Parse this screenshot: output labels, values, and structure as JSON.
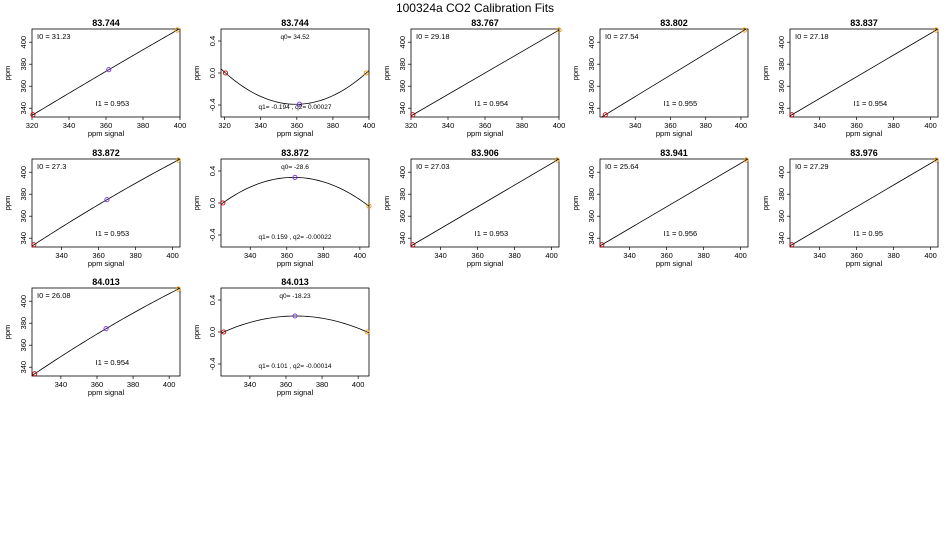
{
  "page_title": "100324a   CO2 Calibration Fits",
  "axis_labels": {
    "x": "ppm signal",
    "y": "ppm"
  },
  "colors": {
    "low_point": "#cc0000",
    "mid_point": "#7a2be2",
    "high_point": "#e69500",
    "fit_line": "#000000"
  },
  "chart_data": [
    {
      "type": "line",
      "title": "83.744",
      "xlim": [
        320,
        400
      ],
      "ylim": [
        332,
        412
      ],
      "xticks": [
        320,
        340,
        360,
        380,
        400
      ],
      "yticks": [
        340,
        360,
        380,
        400
      ],
      "x": [
        320.5,
        361.5,
        398.5
      ],
      "y": [
        334,
        375,
        411
      ],
      "annotations": [
        {
          "text": "I0 =  31.23",
          "pos": "top-left"
        },
        {
          "text": "I1 =  0.953",
          "pos": "bottom-right"
        }
      ]
    },
    {
      "type": "line",
      "title": "83.744",
      "xlim": [
        318,
        400
      ],
      "ylim": [
        -0.55,
        0.55
      ],
      "xticks": [
        320,
        340,
        360,
        380,
        400
      ],
      "yticks": [
        -0.4,
        0.0,
        0.4
      ],
      "x": [
        320.5,
        361.5,
        398.5
      ],
      "y": [
        0.0,
        -0.39,
        0.0
      ],
      "annotations": [
        {
          "text": "q0= 34.52",
          "pos": "top"
        },
        {
          "text": "q1= -0.194  ,  q2= 0.00027",
          "pos": "bottom"
        }
      ]
    },
    {
      "type": "line",
      "title": "83.767",
      "xlim": [
        320,
        400
      ],
      "ylim": [
        332,
        412
      ],
      "xticks": [
        320,
        340,
        360,
        380,
        400
      ],
      "yticks": [
        340,
        360,
        380,
        400
      ],
      "x": [
        321,
        400
      ],
      "y": [
        334,
        411
      ],
      "annotations": [
        {
          "text": "I0 =  29.18",
          "pos": "top-left"
        },
        {
          "text": "I1 =  0.954",
          "pos": "bottom-right"
        }
      ]
    },
    {
      "type": "line",
      "title": "83.802",
      "xlim": [
        320,
        404
      ],
      "ylim": [
        332,
        412
      ],
      "xticks": [
        340,
        360,
        380,
        400
      ],
      "yticks": [
        340,
        360,
        380,
        400
      ],
      "x": [
        323,
        402
      ],
      "y": [
        334,
        411
      ],
      "annotations": [
        {
          "text": "I0 =  27.54",
          "pos": "top-left"
        },
        {
          "text": "I1 =  0.955",
          "pos": "bottom-right"
        }
      ]
    },
    {
      "type": "line",
      "title": "83.837",
      "xlim": [
        324,
        404
      ],
      "ylim": [
        332,
        412
      ],
      "xticks": [
        340,
        360,
        380,
        400
      ],
      "yticks": [
        340,
        360,
        380,
        400
      ],
      "x": [
        325,
        403
      ],
      "y": [
        334,
        411
      ],
      "annotations": [
        {
          "text": "I0 =  27.18",
          "pos": "top-left"
        },
        {
          "text": "I1 =  0.954",
          "pos": "bottom-right"
        }
      ]
    },
    {
      "type": "line",
      "title": "83.872",
      "xlim": [
        324,
        404
      ],
      "ylim": [
        332,
        412
      ],
      "xticks": [
        340,
        360,
        380,
        400
      ],
      "yticks": [
        340,
        360,
        380,
        400
      ],
      "x": [
        325,
        364.5,
        403
      ],
      "y": [
        334,
        375,
        411
      ],
      "annotations": [
        {
          "text": "I0 =  27.3",
          "pos": "top-left"
        },
        {
          "text": "I1 =  0.953",
          "pos": "bottom-right"
        }
      ]
    },
    {
      "type": "line",
      "title": "83.872",
      "xlim": [
        324,
        405
      ],
      "ylim": [
        -0.55,
        0.55
      ],
      "xticks": [
        340,
        360,
        380,
        400
      ],
      "yticks": [
        -0.4,
        0.0,
        0.4
      ],
      "x": [
        325,
        364.5,
        405
      ],
      "y": [
        0.0,
        0.32,
        -0.04
      ],
      "annotations": [
        {
          "text": "q0= -28.6",
          "pos": "top"
        },
        {
          "text": "q1= 0.159  ,  q2= -0.00022",
          "pos": "bottom"
        }
      ]
    },
    {
      "type": "line",
      "title": "83.906",
      "xlim": [
        324,
        404
      ],
      "ylim": [
        332,
        412
      ],
      "xticks": [
        340,
        360,
        380,
        400
      ],
      "yticks": [
        340,
        360,
        380,
        400
      ],
      "x": [
        325,
        403
      ],
      "y": [
        334,
        411
      ],
      "annotations": [
        {
          "text": "I0 =  27.03",
          "pos": "top-left"
        },
        {
          "text": "I1 =  0.953",
          "pos": "bottom-right"
        }
      ]
    },
    {
      "type": "line",
      "title": "83.941",
      "xlim": [
        324,
        404
      ],
      "ylim": [
        332,
        412
      ],
      "xticks": [
        340,
        360,
        380,
        400
      ],
      "yticks": [
        340,
        360,
        380,
        400
      ],
      "x": [
        325,
        403
      ],
      "y": [
        334,
        411
      ],
      "annotations": [
        {
          "text": "I0 =  25.64",
          "pos": "top-left"
        },
        {
          "text": "I1 =  0.956",
          "pos": "bottom-right"
        }
      ]
    },
    {
      "type": "line",
      "title": "83.976",
      "xlim": [
        324,
        404
      ],
      "ylim": [
        332,
        412
      ],
      "xticks": [
        340,
        360,
        380,
        400
      ],
      "yticks": [
        340,
        360,
        380,
        400
      ],
      "x": [
        325,
        403
      ],
      "y": [
        334,
        411
      ],
      "annotations": [
        {
          "text": "I0 =  27.29",
          "pos": "top-left"
        },
        {
          "text": "I1 =  0.95",
          "pos": "bottom-right"
        }
      ]
    },
    {
      "type": "line",
      "title": "84.013",
      "xlim": [
        324,
        406
      ],
      "ylim": [
        332,
        412
      ],
      "xticks": [
        340,
        360,
        380,
        400
      ],
      "yticks": [
        340,
        360,
        380,
        400
      ],
      "x": [
        325.5,
        365,
        405
      ],
      "y": [
        334,
        375,
        411
      ],
      "annotations": [
        {
          "text": "I0 =  26.08",
          "pos": "top-left"
        },
        {
          "text": "I1 =  0.954",
          "pos": "bottom-right"
        }
      ]
    },
    {
      "type": "line",
      "title": "84.013",
      "xlim": [
        324,
        406
      ],
      "ylim": [
        -0.55,
        0.55
      ],
      "xticks": [
        340,
        360,
        380,
        400
      ],
      "yticks": [
        -0.4,
        0.0,
        0.4
      ],
      "x": [
        325.5,
        365,
        405
      ],
      "y": [
        0.0,
        0.2,
        0.0
      ],
      "annotations": [
        {
          "text": "q0= -18.23",
          "pos": "top"
        },
        {
          "text": "q1= 0.101  ,  q2= -0.00014",
          "pos": "bottom"
        }
      ]
    }
  ]
}
